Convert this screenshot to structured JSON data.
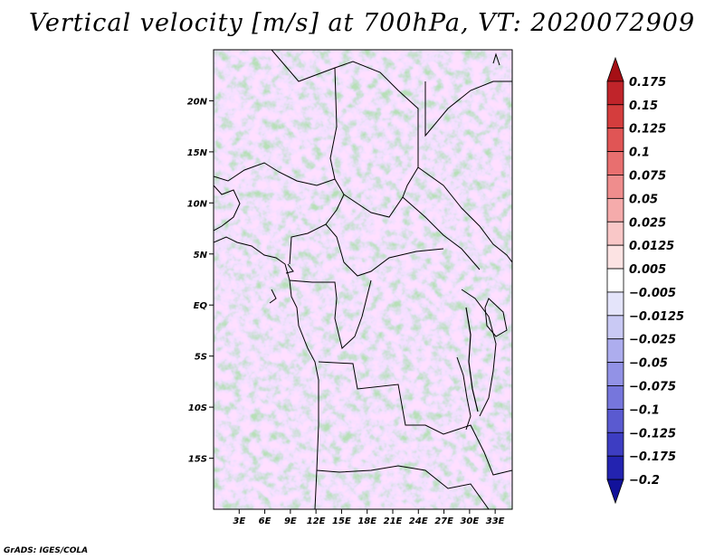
{
  "title": "Vertical velocity [m/s] at 700hPa, VT: 2020072909",
  "footer": "GrADS: IGES/COLA",
  "map": {
    "lat_labels": [
      "20N",
      "15N",
      "10N",
      "5N",
      "EQ",
      "5S",
      "10S",
      "15S"
    ],
    "lat_values": [
      20,
      15,
      10,
      5,
      0,
      -5,
      -10,
      -15
    ],
    "lon_labels": [
      "3E",
      "6E",
      "9E",
      "12E",
      "15E",
      "18E",
      "21E",
      "24E",
      "27E",
      "30E",
      "33E"
    ],
    "lon_values": [
      3,
      6,
      9,
      12,
      15,
      18,
      21,
      24,
      27,
      30,
      33
    ],
    "lon_range": [
      0,
      35
    ],
    "lat_range": [
      -20,
      25
    ]
  },
  "colorbar": {
    "labels": [
      "0.175",
      "0.15",
      "0.125",
      "0.1",
      "0.075",
      "0.05",
      "0.025",
      "0.0125",
      "0.005",
      "−0.005",
      "−0.0125",
      "−0.025",
      "−0.05",
      "−0.075",
      "−0.1",
      "−0.125",
      "−0.175",
      "−0.2"
    ],
    "colors": [
      "#a50f15",
      "#c0242a",
      "#d43d3d",
      "#e05555",
      "#e86f6f",
      "#ef8d8d",
      "#f5abab",
      "#f9c7c7",
      "#fce3e3",
      "#ffffff",
      "#e4e4fa",
      "#c9c9f4",
      "#adadee",
      "#9292e6",
      "#7676dc",
      "#5a5ad0",
      "#3d3dc2",
      "#2323b0",
      "#12129a"
    ]
  }
}
